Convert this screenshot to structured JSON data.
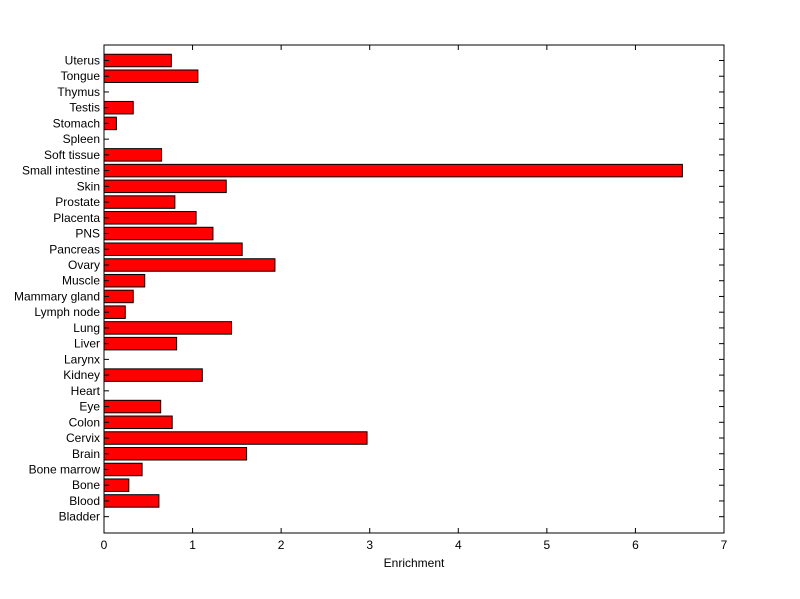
{
  "chart_data": {
    "type": "bar",
    "orientation": "horizontal",
    "categories": [
      "Uterus",
      "Tongue",
      "Thymus",
      "Testis",
      "Stomach",
      "Spleen",
      "Soft tissue",
      "Small intestine",
      "Skin",
      "Prostate",
      "Placenta",
      "PNS",
      "Pancreas",
      "Ovary",
      "Muscle",
      "Mammary gland",
      "Lymph node",
      "Lung",
      "Liver",
      "Larynx",
      "Kidney",
      "Heart",
      "Eye",
      "Colon",
      "Cervix",
      "Brain",
      "Bone marrow",
      "Bone",
      "Blood",
      "Bladder"
    ],
    "values": [
      0.76,
      1.06,
      0,
      0.33,
      0.14,
      0,
      0.65,
      6.53,
      1.38,
      0.8,
      1.04,
      1.23,
      1.56,
      1.93,
      0.46,
      0.33,
      0.24,
      1.44,
      0.82,
      0,
      1.11,
      0,
      0.64,
      0.77,
      2.97,
      1.61,
      0.43,
      0.28,
      0.62,
      0
    ],
    "xlabel": "Enrichment",
    "ylabel": "",
    "title": "",
    "xlim": [
      0,
      7
    ],
    "xticks": [
      "0",
      "1",
      "2",
      "3",
      "4",
      "5",
      "6",
      "7"
    ],
    "bar_color": "#ff0000",
    "edge_color": "#000000",
    "grid": false
  }
}
